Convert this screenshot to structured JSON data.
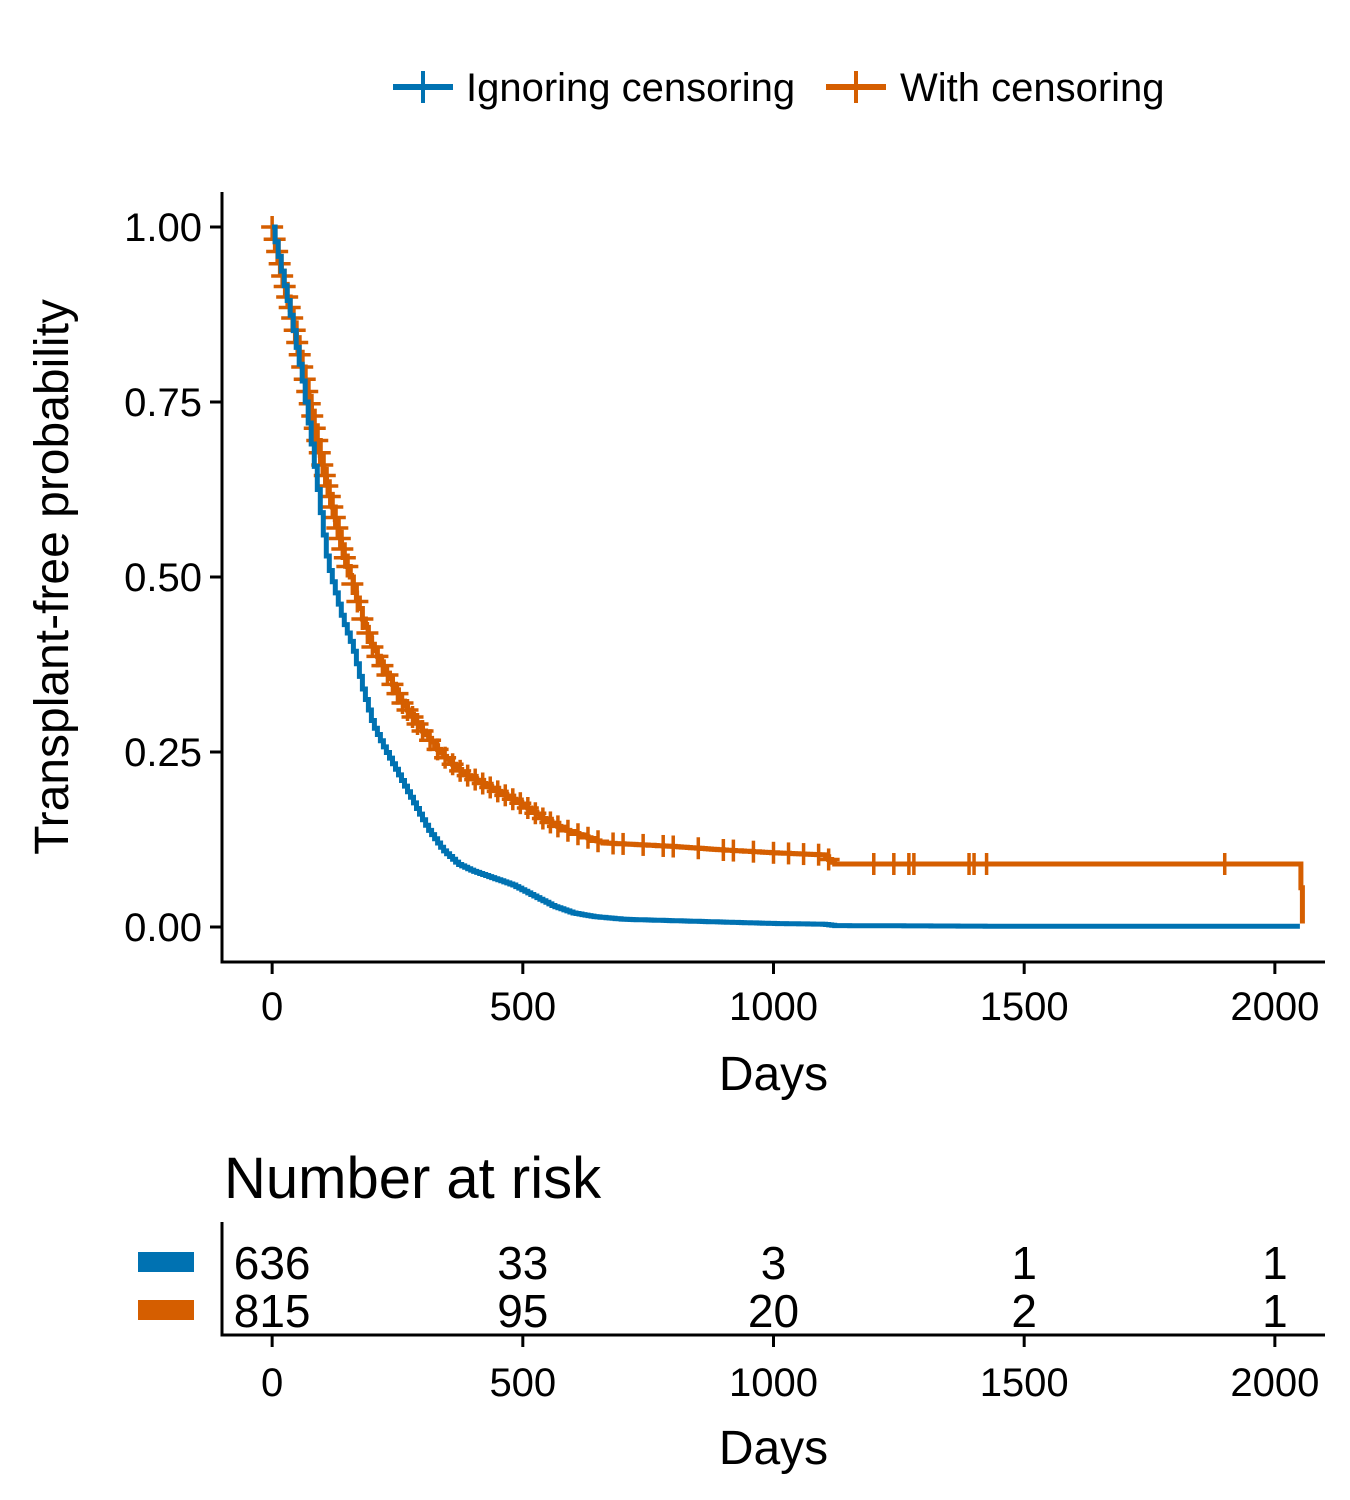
{
  "chart_data": {
    "type": "line",
    "legend_position": "top",
    "series": [
      {
        "name": "Ignoring censoring",
        "color": "#0072B2",
        "censor_marks": false,
        "points": [
          [
            0,
            1.0
          ],
          [
            20,
            0.93
          ],
          [
            40,
            0.86
          ],
          [
            60,
            0.78
          ],
          [
            80,
            0.68
          ],
          [
            100,
            0.57
          ],
          [
            110,
            0.52
          ],
          [
            140,
            0.44
          ],
          [
            160,
            0.4
          ],
          [
            180,
            0.34
          ],
          [
            200,
            0.29
          ],
          [
            220,
            0.26
          ],
          [
            250,
            0.22
          ],
          [
            280,
            0.18
          ],
          [
            310,
            0.14
          ],
          [
            340,
            0.11
          ],
          [
            370,
            0.09
          ],
          [
            400,
            0.08
          ],
          [
            440,
            0.07
          ],
          [
            480,
            0.06
          ],
          [
            520,
            0.045
          ],
          [
            560,
            0.03
          ],
          [
            600,
            0.02
          ],
          [
            640,
            0.015
          ],
          [
            700,
            0.011
          ],
          [
            800,
            0.009
          ],
          [
            900,
            0.007
          ],
          [
            1000,
            0.005
          ],
          [
            1100,
            0.004
          ],
          [
            1120,
            0.002
          ],
          [
            1500,
            0.001
          ],
          [
            2050,
            0.001
          ]
        ]
      },
      {
        "name": "With censoring",
        "color": "#D55E00",
        "censor_marks": true,
        "points": [
          [
            0,
            1.0
          ],
          [
            20,
            0.93
          ],
          [
            40,
            0.87
          ],
          [
            60,
            0.8
          ],
          [
            80,
            0.73
          ],
          [
            100,
            0.66
          ],
          [
            120,
            0.6
          ],
          [
            140,
            0.54
          ],
          [
            160,
            0.49
          ],
          [
            180,
            0.44
          ],
          [
            200,
            0.4
          ],
          [
            230,
            0.36
          ],
          [
            260,
            0.32
          ],
          [
            300,
            0.28
          ],
          [
            340,
            0.245
          ],
          [
            380,
            0.22
          ],
          [
            420,
            0.205
          ],
          [
            460,
            0.19
          ],
          [
            500,
            0.175
          ],
          [
            540,
            0.155
          ],
          [
            580,
            0.14
          ],
          [
            620,
            0.13
          ],
          [
            660,
            0.12
          ],
          [
            720,
            0.118
          ],
          [
            800,
            0.115
          ],
          [
            900,
            0.11
          ],
          [
            1000,
            0.106
          ],
          [
            1100,
            0.103
          ],
          [
            1120,
            0.09
          ],
          [
            2050,
            0.09
          ],
          [
            2055,
            0.005
          ]
        ],
        "censor_times": [
          0,
          5,
          10,
          15,
          20,
          25,
          30,
          35,
          40,
          45,
          50,
          55,
          60,
          65,
          70,
          75,
          80,
          85,
          90,
          95,
          100,
          105,
          110,
          115,
          120,
          125,
          130,
          135,
          140,
          145,
          150,
          160,
          170,
          180,
          190,
          200,
          210,
          220,
          230,
          240,
          250,
          260,
          270,
          280,
          290,
          300,
          315,
          330,
          345,
          360,
          375,
          390,
          405,
          420,
          435,
          450,
          465,
          480,
          495,
          510,
          525,
          540,
          555,
          570,
          590,
          610,
          630,
          650,
          680,
          700,
          740,
          780,
          800,
          850,
          900,
          920,
          960,
          1000,
          1030,
          1060,
          1090,
          1110,
          1200,
          1240,
          1270,
          1280,
          1390,
          1400,
          1425,
          1900
        ]
      }
    ],
    "x_axis": {
      "label": "Days",
      "range": [
        -100,
        2100
      ],
      "ticks": [
        0,
        500,
        1000,
        1500,
        2000
      ]
    },
    "y_axis": {
      "label": "Transplant-free probability",
      "range": [
        -0.05,
        1.05
      ],
      "ticks": [
        "0.00",
        "0.25",
        "0.50",
        "0.75",
        "1.00"
      ]
    },
    "grid": false,
    "risk_table": {
      "title": "Number at risk",
      "x_label": "Days",
      "times": [
        0,
        500,
        1000,
        1500,
        2000
      ],
      "rows": [
        {
          "series": "Ignoring censoring",
          "color": "#0072B2",
          "values": [
            "636",
            "33",
            "3",
            "1",
            "1"
          ]
        },
        {
          "series": "With censoring",
          "color": "#D55E00",
          "values": [
            "815",
            "95",
            "20",
            "2",
            "1"
          ]
        }
      ]
    }
  }
}
